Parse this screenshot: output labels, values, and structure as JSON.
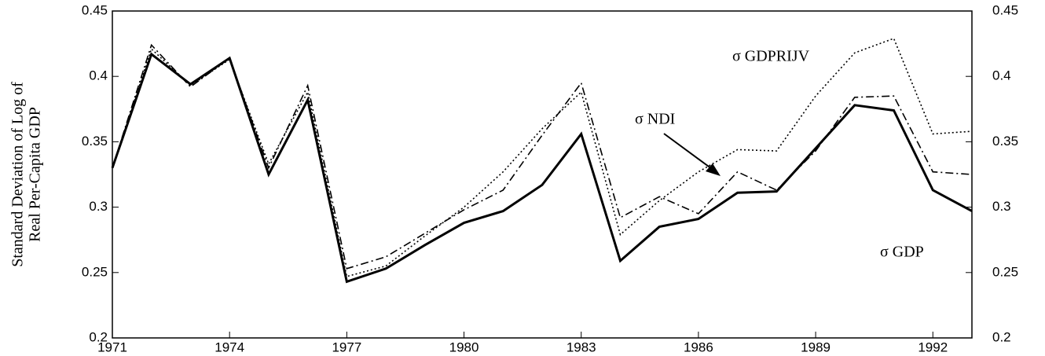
{
  "chart_data": {
    "type": "line",
    "y_label_lines": [
      "Standard Deviation of Log of",
      "Real Per-Capita GDP"
    ],
    "x": [
      1971,
      1972,
      1973,
      1974,
      1975,
      1976,
      1977,
      1978,
      1979,
      1980,
      1981,
      1982,
      1983,
      1984,
      1985,
      1986,
      1987,
      1988,
      1989,
      1990,
      1991,
      1992,
      1993
    ],
    "xlim": [
      1971,
      1993
    ],
    "xticks": [
      1971,
      1974,
      1977,
      1980,
      1983,
      1986,
      1989,
      1992
    ],
    "ylim": [
      0.2,
      0.45
    ],
    "yticks": [
      0.2,
      0.25,
      0.3,
      0.35,
      0.4,
      0.45
    ],
    "series": [
      {
        "name": "σ GDP",
        "color": "#000000",
        "style": "solid",
        "values": [
          0.33,
          0.417,
          0.394,
          0.414,
          0.325,
          0.382,
          0.243,
          0.253,
          0.271,
          0.288,
          0.297,
          0.317,
          0.356,
          0.259,
          0.285,
          0.291,
          0.311,
          0.312,
          0.345,
          0.378,
          0.374,
          0.313,
          0.297
        ]
      },
      {
        "name": "σ NDI",
        "color": "#000000",
        "style": "dashdot",
        "values": [
          0.33,
          0.424,
          0.392,
          0.414,
          0.33,
          0.393,
          0.253,
          0.262,
          0.28,
          0.298,
          0.313,
          0.355,
          0.395,
          0.292,
          0.308,
          0.295,
          0.327,
          0.313,
          0.343,
          0.384,
          0.385,
          0.327,
          0.325
        ]
      },
      {
        "name": "σ GDPRIJV",
        "color": "#000000",
        "style": "dotted",
        "values": [
          0.33,
          0.421,
          0.393,
          0.413,
          0.333,
          0.388,
          0.247,
          0.255,
          0.278,
          0.3,
          0.327,
          0.36,
          0.388,
          0.279,
          0.305,
          0.327,
          0.344,
          0.343,
          0.385,
          0.418,
          0.429,
          0.356,
          0.358
        ]
      }
    ]
  }
}
